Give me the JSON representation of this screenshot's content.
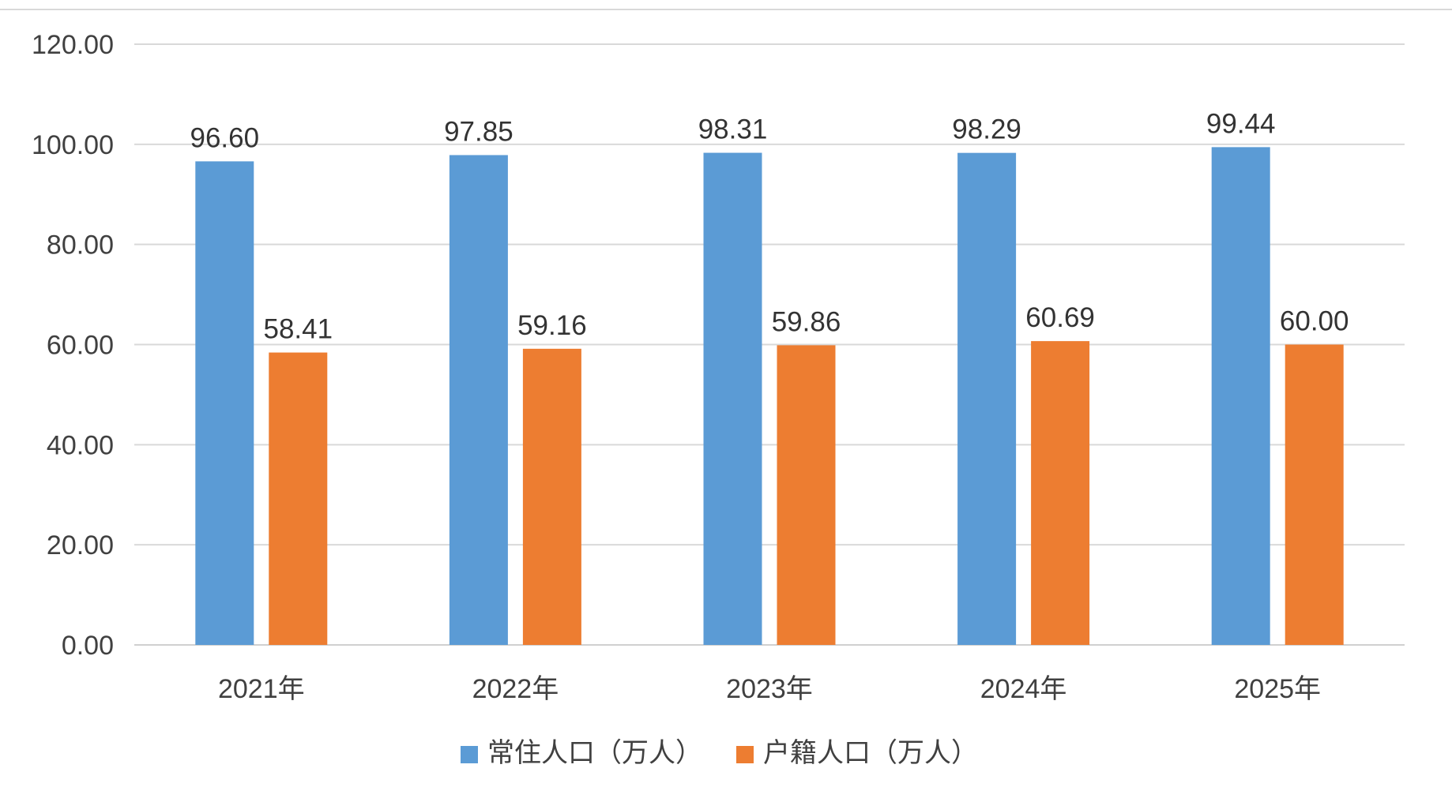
{
  "chart_data": {
    "type": "bar",
    "categories": [
      "2021年",
      "2022年",
      "2023年",
      "2024年",
      "2025年"
    ],
    "series": [
      {
        "name": "常住人口（万人）",
        "values": [
          96.6,
          97.85,
          98.31,
          98.29,
          99.44
        ],
        "color": "#5B9BD5"
      },
      {
        "name": "户籍人口（万人）",
        "values": [
          58.41,
          59.16,
          59.86,
          60.69,
          60.0
        ],
        "color": "#ED7D31"
      }
    ],
    "value_labels": [
      [
        "96.60",
        "97.85",
        "98.31",
        "98.29",
        "99.44"
      ],
      [
        "58.41",
        "59.16",
        "59.86",
        "60.69",
        "60.00"
      ]
    ],
    "yticks": [
      "0.00",
      "20.00",
      "40.00",
      "60.00",
      "80.00",
      "100.00",
      "120.00"
    ],
    "ylim": [
      0,
      120
    ],
    "ytick_step": 20,
    "grid": true,
    "legend": "bottom-center",
    "title": "",
    "xlabel": "",
    "ylabel": ""
  }
}
